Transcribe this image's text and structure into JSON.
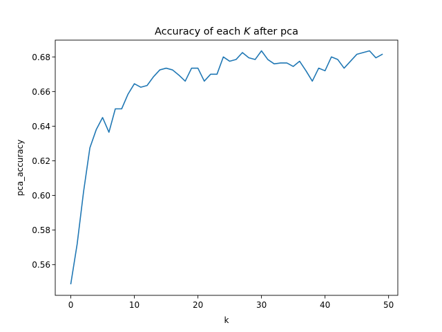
{
  "chart_data": {
    "type": "line",
    "title_main": "Accuracy of each ",
    "title_italic": "K",
    "title_tail": " after pca",
    "xlabel": "k",
    "ylabel": "pca_accuracy",
    "xlim": [
      -2.45,
      51.45
    ],
    "ylim": [
      0.5423,
      0.6897
    ],
    "xticks": [
      0,
      10,
      20,
      30,
      40,
      50
    ],
    "yticks": [
      0.56,
      0.58,
      0.6,
      0.62,
      0.64,
      0.66,
      0.68
    ],
    "ytick_labels": [
      "0.56",
      "0.58",
      "0.60",
      "0.62",
      "0.64",
      "0.66",
      "0.68"
    ],
    "grid": false,
    "line_color": "#1f77b4",
    "x": [
      0,
      1,
      2,
      3,
      4,
      5,
      6,
      7,
      8,
      9,
      10,
      11,
      12,
      13,
      14,
      15,
      16,
      17,
      18,
      19,
      20,
      21,
      22,
      23,
      24,
      25,
      26,
      27,
      28,
      29,
      30,
      31,
      32,
      33,
      34,
      35,
      36,
      37,
      38,
      39,
      40,
      41,
      42,
      43,
      44,
      45,
      46,
      47,
      48,
      49
    ],
    "values": [
      0.549,
      0.572,
      0.602,
      0.6275,
      0.638,
      0.645,
      0.6365,
      0.65,
      0.65,
      0.6585,
      0.6645,
      0.6625,
      0.6635,
      0.6685,
      0.6725,
      0.6735,
      0.6725,
      0.6695,
      0.666,
      0.6735,
      0.6735,
      0.666,
      0.67,
      0.67,
      0.68,
      0.6775,
      0.6785,
      0.6825,
      0.6795,
      0.6785,
      0.6835,
      0.6785,
      0.676,
      0.6765,
      0.6765,
      0.6745,
      0.6775,
      0.672,
      0.666,
      0.6735,
      0.672,
      0.68,
      0.6785,
      0.6735,
      0.6775,
      0.6815,
      0.6825,
      0.6835,
      0.6795,
      0.6815
    ]
  }
}
